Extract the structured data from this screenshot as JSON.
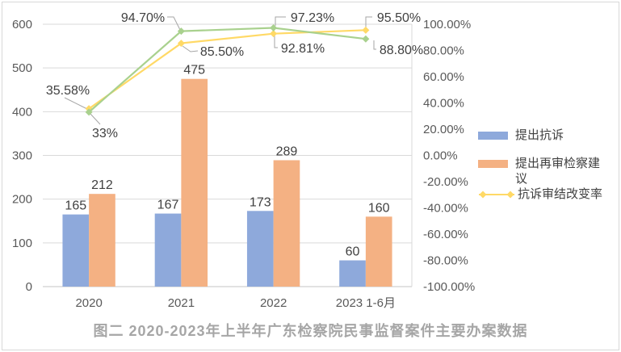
{
  "figure": {
    "title": "图二 2020-2023年上半年广东检察院民事监督案件主要办案数据"
  },
  "chart_data": {
    "type": "combo bar+line, dual axis",
    "categories": [
      "2020",
      "2021",
      "2022",
      "2023 1-6月"
    ],
    "bar_series": [
      {
        "name": "提出抗诉",
        "color": "#8EA9DB",
        "values": [
          165,
          167,
          173,
          60
        ]
      },
      {
        "name": "提出再审检察建议",
        "color": "#F4B183",
        "values": [
          212,
          475,
          289,
          160
        ]
      }
    ],
    "line_series": [
      {
        "name": "抗诉审结改变率",
        "color": "#FFD966",
        "values_pct": [
          35.58,
          85.5,
          92.81,
          95.5
        ],
        "point_labels": [
          "35.58%",
          "85.50%",
          "92.81%",
          "95.50%"
        ]
      },
      {
        "name": "",
        "color": "#A9D18E",
        "values_pct": [
          33,
          94.7,
          97.23,
          88.8
        ],
        "point_labels": [
          "33%",
          "94.70%",
          "97.23%",
          "88.80%"
        ]
      }
    ],
    "left_axis": {
      "min": 0,
      "max": 600,
      "step": 100,
      "ticks": [
        "600",
        "500",
        "400",
        "300",
        "200",
        "100",
        "0"
      ]
    },
    "right_axis": {
      "min": -100,
      "max": 100,
      "step": 20,
      "ticks": [
        "100.00%",
        "80.00%",
        "60.00%",
        "40.00%",
        "20.00%",
        "0.00%",
        "-20.00%",
        "-40.00%",
        "-60.00%",
        "-80.00%",
        "-100.00%"
      ]
    },
    "legend": [
      {
        "label": "提出抗诉",
        "swatch": "bar",
        "color": "#8EA9DB"
      },
      {
        "label": "提出再审检察建议",
        "swatch": "bar",
        "color": "#F4B183"
      },
      {
        "label": "抗诉审结改变率",
        "swatch": "line-diamond",
        "color": "#FFD966"
      }
    ],
    "grid": true,
    "legend_position": "right"
  }
}
